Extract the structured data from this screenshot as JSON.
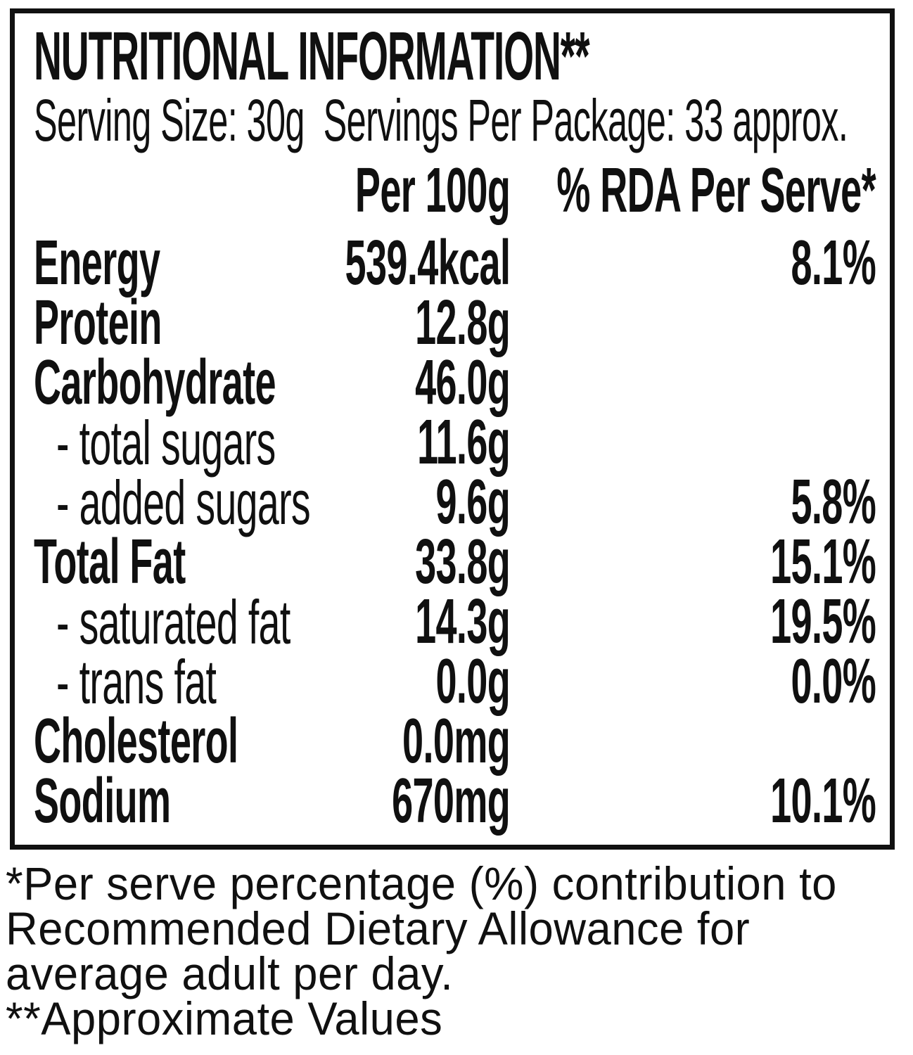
{
  "label": {
    "title": "NUTRITIONAL INFORMATION**",
    "serving_line": "Serving Size: 30g  Servings Per Package: 33 approx.",
    "columns": {
      "per_100g": "Per 100g",
      "rda": "% RDA Per Serve*"
    },
    "rows": [
      {
        "name": "Energy",
        "per_100g": "539.4kcal",
        "rda": "8.1%"
      },
      {
        "name": "Protein",
        "per_100g": "12.8g",
        "rda": ""
      },
      {
        "name": "Carbohydrate",
        "per_100g": "46.0g",
        "rda": ""
      },
      {
        "name": "- total sugars",
        "per_100g": "11.6g",
        "rda": ""
      },
      {
        "name": "- added sugars",
        "per_100g": "9.6g",
        "rda": "5.8%"
      },
      {
        "name": "Total Fat",
        "per_100g": "33.8g",
        "rda": "15.1%"
      },
      {
        "name": "- saturated fat",
        "per_100g": "14.3g",
        "rda": "19.5%"
      },
      {
        "name": "- trans fat",
        "per_100g": "0.0g",
        "rda": "0.0%"
      },
      {
        "name": "Cholesterol",
        "per_100g": "0.0mg",
        "rda": ""
      },
      {
        "name": "Sodium",
        "per_100g": "670mg",
        "rda": "10.1%"
      }
    ],
    "footnotes": [
      "*Per serve percentage (%) contribution to",
      "Recommended Dietary Allowance for",
      "average adult per day.",
      "**Approximate Values"
    ],
    "colors": {
      "text": "#101010",
      "background": "#ffffff",
      "border": "#111111"
    }
  }
}
